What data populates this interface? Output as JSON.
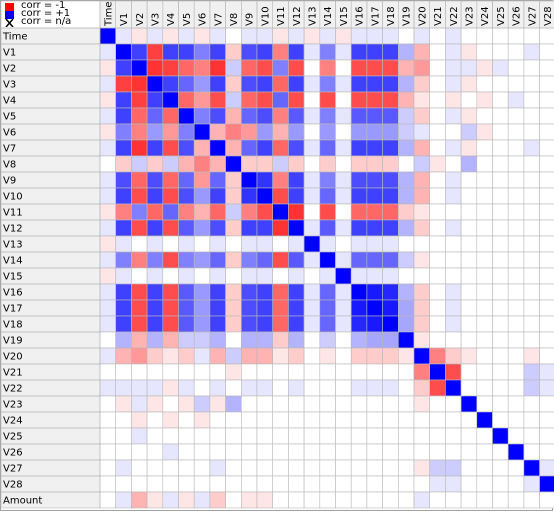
{
  "legend": {
    "items": [
      {
        "label": "corr = -1",
        "color": "#ff0000"
      },
      {
        "label": "corr = +1",
        "color": "#0000ff"
      },
      {
        "label": "corr = n/a",
        "color": "#000000",
        "icon": "x-icon"
      }
    ]
  },
  "colors": {
    "negative": "#ff0000",
    "positive": "#0000ff",
    "grid": "#b8b8b8",
    "header_bg": "#f0f0f0"
  },
  "chart_data": {
    "type": "heatmap",
    "variables": [
      "Time",
      "V1",
      "V2",
      "V3",
      "V4",
      "V5",
      "V6",
      "V7",
      "V8",
      "V9",
      "V10",
      "V11",
      "V12",
      "V13",
      "V14",
      "V15",
      "V16",
      "V17",
      "V18",
      "V19",
      "V20",
      "V21",
      "V22",
      "V23",
      "V24",
      "V25",
      "V26",
      "V27",
      "V28",
      "Amount"
    ],
    "column_labels": [
      "Time",
      "V1",
      "V2",
      "V3",
      "V4",
      "V5",
      "V6",
      "V7",
      "V8",
      "V9",
      "V10",
      "V11",
      "V12",
      "V13",
      "V14",
      "V15",
      "V16",
      "V17",
      "V18",
      "V19",
      "V20",
      "V21",
      "V22",
      "V23",
      "V24",
      "V25",
      "V26",
      "V27",
      "V28",
      "A..."
    ],
    "value_range": [
      -1,
      1
    ],
    "matrix": [
      [
        1,
        0.1,
        -0.1,
        0.1,
        -0.1,
        0.1,
        -0.1,
        0.1,
        0,
        0.1,
        0.1,
        -0.1,
        0.1,
        -0.1,
        0.1,
        -0.1,
        0.1,
        0.1,
        0.1,
        0,
        0.1,
        0,
        0.1,
        0,
        0,
        0,
        0,
        0,
        0,
        0
      ],
      [
        0.1,
        1,
        0.75,
        -0.75,
        0.75,
        0.75,
        0.5,
        0.75,
        -0.2,
        0.7,
        0.75,
        -0.5,
        0.75,
        0.1,
        0.5,
        0.1,
        0.75,
        0.75,
        0.75,
        0.3,
        -0.3,
        0,
        0.1,
        -0.1,
        0,
        0,
        0,
        0.1,
        0,
        0.1
      ],
      [
        -0.1,
        0.75,
        1,
        -0.8,
        -0.75,
        -0.6,
        -0.5,
        -0.8,
        0.2,
        -0.6,
        -0.7,
        0.5,
        -0.7,
        0,
        -0.5,
        0,
        -0.7,
        -0.7,
        -0.7,
        -0.3,
        -0.4,
        0,
        0.1,
        0.1,
        -0.1,
        0.1,
        0,
        0,
        0,
        -0.3
      ],
      [
        0.1,
        -0.75,
        -0.8,
        1,
        0.75,
        0.6,
        0.4,
        0.75,
        -0.2,
        0.7,
        0.75,
        -0.6,
        0.75,
        0.1,
        0.5,
        0.1,
        0.75,
        0.75,
        0.75,
        0.3,
        -0.2,
        0,
        0.1,
        -0.1,
        0,
        0,
        0,
        0,
        0,
        -0.1
      ],
      [
        -0.1,
        0.75,
        -0.75,
        0.75,
        1,
        -0.6,
        -0.4,
        -0.7,
        0.2,
        -0.6,
        -0.7,
        0.6,
        -0.7,
        0,
        -0.7,
        0,
        -0.7,
        -0.7,
        -0.7,
        -0.3,
        -0.1,
        0,
        -0.1,
        0,
        -0.1,
        0,
        0.1,
        0,
        0,
        0.1
      ],
      [
        0.1,
        0.75,
        -0.6,
        0.6,
        -0.6,
        1,
        0.5,
        0.7,
        -0.3,
        0.6,
        0.7,
        -0.5,
        0.65,
        0.1,
        0.5,
        0.1,
        0.65,
        0.65,
        0.65,
        0.2,
        -0.2,
        0,
        0.1,
        -0.1,
        0,
        0,
        0,
        0,
        0,
        -0.1
      ],
      [
        -0.1,
        0.5,
        -0.5,
        0.4,
        -0.4,
        0.5,
        1,
        -0.3,
        -0.5,
        -0.4,
        0.4,
        -0.3,
        0.4,
        0,
        0.4,
        0,
        0.4,
        0.4,
        0.4,
        0.2,
        0.1,
        0,
        0,
        0.2,
        -0.1,
        0,
        0,
        0,
        0,
        0.1
      ],
      [
        0.1,
        0.75,
        -0.8,
        0.75,
        -0.7,
        0.7,
        -0.3,
        1,
        -0.3,
        0.6,
        0.75,
        -0.6,
        0.7,
        0.1,
        0.6,
        0.1,
        0.75,
        0.75,
        0.75,
        0.3,
        -0.3,
        0,
        0.1,
        -0.1,
        0,
        0,
        0,
        0.1,
        0,
        -0.2
      ],
      [
        0,
        -0.2,
        0.2,
        -0.2,
        0.2,
        -0.3,
        -0.5,
        -0.3,
        1,
        -0.2,
        -0.2,
        0.2,
        -0.2,
        0,
        -0.2,
        0,
        -0.2,
        -0.2,
        -0.2,
        0,
        0.2,
        -0.1,
        0,
        0.3,
        0,
        0,
        0,
        0,
        0,
        0
      ],
      [
        0.1,
        0.7,
        -0.6,
        0.7,
        -0.6,
        0.6,
        -0.4,
        0.6,
        -0.2,
        1,
        0.8,
        -0.5,
        0.75,
        0.1,
        0.5,
        0.1,
        0.7,
        0.7,
        0.7,
        0.3,
        -0.3,
        0,
        0.1,
        0,
        0,
        0,
        0,
        0,
        0,
        -0.1
      ],
      [
        0.1,
        0.75,
        -0.7,
        0.75,
        -0.7,
        0.7,
        0.4,
        0.75,
        -0.2,
        0.8,
        1,
        -0.7,
        0.75,
        0.1,
        0.6,
        0.1,
        0.75,
        0.75,
        0.75,
        0.3,
        -0.3,
        0,
        0.1,
        0,
        0,
        0,
        0,
        0,
        0,
        -0.1
      ],
      [
        -0.1,
        -0.5,
        0.5,
        -0.6,
        0.6,
        -0.5,
        -0.3,
        -0.6,
        0.2,
        -0.5,
        -0.7,
        1,
        -0.8,
        0,
        -0.7,
        0,
        -0.6,
        -0.6,
        -0.6,
        -0.2,
        -0.1,
        0,
        0,
        0,
        0,
        0,
        0,
        0,
        0,
        0
      ],
      [
        0.1,
        0.75,
        -0.7,
        0.75,
        -0.7,
        0.65,
        0.4,
        0.7,
        -0.2,
        0.75,
        0.75,
        -0.8,
        1,
        0.1,
        0.65,
        0.1,
        0.75,
        0.75,
        0.75,
        0.3,
        -0.2,
        0,
        0.1,
        0,
        0,
        0,
        0,
        0,
        0,
        0
      ],
      [
        -0.1,
        0.1,
        0,
        0.1,
        0,
        0.1,
        0,
        0.1,
        0,
        0.1,
        0.1,
        0,
        0.1,
        1,
        0.1,
        0,
        0.1,
        0.1,
        0.1,
        0,
        0,
        0,
        0,
        0,
        0,
        0,
        0,
        0,
        0,
        0
      ],
      [
        0.1,
        0.5,
        -0.5,
        0.5,
        -0.7,
        0.5,
        0.4,
        0.6,
        -0.2,
        0.5,
        0.6,
        -0.7,
        0.65,
        0.1,
        1,
        0.1,
        0.6,
        0.6,
        0.6,
        0.2,
        -0.1,
        0,
        0,
        0,
        0,
        0,
        0,
        0,
        0,
        0
      ],
      [
        -0.1,
        0.1,
        0,
        0.1,
        0,
        0.1,
        0,
        0.1,
        0,
        0.1,
        0.1,
        0,
        0.1,
        0,
        0.1,
        1,
        0.1,
        0.1,
        0.1,
        0,
        0,
        0,
        0,
        0,
        0,
        0,
        0,
        0,
        0,
        0
      ],
      [
        0.1,
        0.75,
        -0.7,
        0.75,
        -0.7,
        0.65,
        0.4,
        0.75,
        -0.2,
        0.7,
        0.75,
        -0.6,
        0.75,
        0.1,
        0.6,
        0.1,
        1,
        0.9,
        0.85,
        0.3,
        -0.2,
        0,
        0.1,
        0,
        0,
        0,
        0,
        0,
        0,
        0
      ],
      [
        0.1,
        0.75,
        -0.7,
        0.75,
        -0.7,
        0.65,
        0.4,
        0.75,
        -0.2,
        0.7,
        0.75,
        -0.6,
        0.75,
        0.1,
        0.6,
        0.1,
        0.9,
        1,
        0.9,
        0.35,
        -0.2,
        0,
        0.1,
        0,
        0,
        0,
        0,
        0,
        0,
        0
      ],
      [
        0.1,
        0.75,
        -0.7,
        0.75,
        -0.7,
        0.65,
        0.4,
        0.75,
        -0.2,
        0.7,
        0.75,
        -0.6,
        0.75,
        0.1,
        0.6,
        0.1,
        0.85,
        0.9,
        1,
        0.35,
        -0.2,
        0,
        0.1,
        0,
        0,
        0,
        0,
        0,
        0,
        0
      ],
      [
        0,
        0.3,
        -0.3,
        0.3,
        -0.3,
        0.2,
        0.2,
        0.3,
        0,
        0.3,
        0.3,
        -0.2,
        0.3,
        0,
        0.2,
        0,
        0.3,
        0.35,
        0.35,
        1,
        -0.1,
        0,
        0,
        0,
        0,
        0,
        0,
        0,
        0,
        0
      ],
      [
        0.1,
        -0.3,
        -0.4,
        -0.2,
        -0.1,
        -0.2,
        0.1,
        -0.3,
        0.2,
        -0.3,
        -0.3,
        -0.1,
        -0.2,
        0,
        -0.1,
        0,
        -0.2,
        -0.2,
        -0.2,
        -0.1,
        1,
        -0.5,
        -0.2,
        -0.1,
        0,
        0,
        0,
        -0.1,
        0,
        0.1
      ],
      [
        0,
        0,
        0,
        0,
        0,
        0,
        0,
        0,
        -0.1,
        0,
        0,
        0,
        0,
        0,
        0,
        0,
        0,
        0,
        0,
        0,
        -0.5,
        1,
        -0.7,
        0,
        0,
        0,
        0,
        0.2,
        0.1,
        0
      ],
      [
        0.1,
        0.1,
        0.1,
        0.1,
        -0.1,
        0.1,
        0,
        0.1,
        0,
        0.1,
        0.1,
        0,
        0.1,
        0,
        0,
        0,
        0.1,
        0.1,
        0.1,
        0,
        -0.2,
        -0.7,
        1,
        0,
        0,
        0,
        0,
        0.2,
        0.1,
        0
      ],
      [
        0,
        -0.1,
        0.1,
        -0.1,
        0,
        -0.1,
        0.2,
        -0.1,
        0.3,
        0,
        0,
        0,
        0,
        0,
        0,
        0,
        0,
        0,
        0,
        0,
        -0.1,
        0,
        0,
        1,
        0,
        0,
        0,
        0,
        0,
        0
      ],
      [
        0,
        0,
        -0.1,
        0,
        -0.1,
        0,
        -0.1,
        0,
        0,
        0,
        0,
        0,
        0,
        0,
        0,
        0,
        0,
        0,
        0,
        0,
        0,
        0,
        0,
        0,
        1,
        0,
        0,
        0,
        0,
        0
      ],
      [
        0,
        0,
        0.1,
        0,
        0,
        0,
        0,
        0,
        0,
        0,
        0,
        0,
        0,
        0,
        0,
        0,
        0,
        0,
        0,
        0,
        0,
        0,
        0,
        0,
        0,
        1,
        0,
        0,
        0,
        0
      ],
      [
        0,
        0,
        0,
        0,
        0.1,
        0,
        0,
        0,
        0,
        0,
        0,
        0,
        0,
        0,
        0,
        0,
        0,
        0,
        0,
        0,
        0,
        0,
        0,
        0,
        0,
        0,
        1,
        0,
        0,
        0
      ],
      [
        0,
        0.1,
        0,
        0,
        0,
        0,
        0,
        0.1,
        0,
        0,
        0,
        0,
        0,
        0,
        0,
        0,
        0,
        0,
        0,
        0,
        -0.1,
        0.2,
        0.2,
        0,
        0,
        0,
        0,
        1,
        0.1,
        0
      ],
      [
        0,
        0,
        0,
        0,
        0,
        0,
        0,
        0,
        0,
        0,
        0,
        0,
        0,
        0,
        0,
        0,
        0,
        0,
        0,
        0,
        0,
        0.1,
        0.1,
        0,
        0,
        0,
        0,
        0.1,
        1,
        0
      ],
      [
        0,
        0.1,
        -0.3,
        -0.1,
        0.1,
        -0.1,
        0.1,
        -0.2,
        0,
        -0.1,
        -0.1,
        0,
        0,
        0,
        0,
        0,
        0,
        0,
        0,
        0,
        0.1,
        0,
        0,
        0,
        0,
        0,
        0,
        0,
        0,
        1
      ]
    ]
  }
}
